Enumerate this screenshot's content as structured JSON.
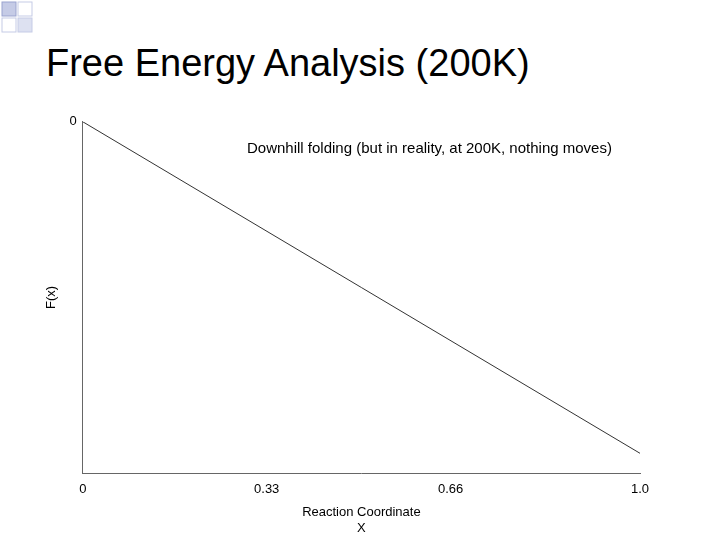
{
  "chart_data": {
    "type": "line",
    "title": "Free Energy Analysis (200K)",
    "annotation": "Downhill folding (but in reality, at 200K, nothing moves)",
    "xlabel": [
      "Reaction Coordinate",
      "X"
    ],
    "ylabel": "F(x)",
    "x": [
      0,
      1
    ],
    "values": [
      0,
      -1
    ],
    "color": "#333333",
    "line_style": "solid",
    "xlim": [
      0,
      1
    ],
    "xticks": [
      0,
      0.33,
      0.66,
      {
        "value": 1,
        "label": "1.0"
      }
    ],
    "ylim": [
      -1.06,
      0
    ],
    "yticks": [
      0
    ],
    "grid": false
  }
}
